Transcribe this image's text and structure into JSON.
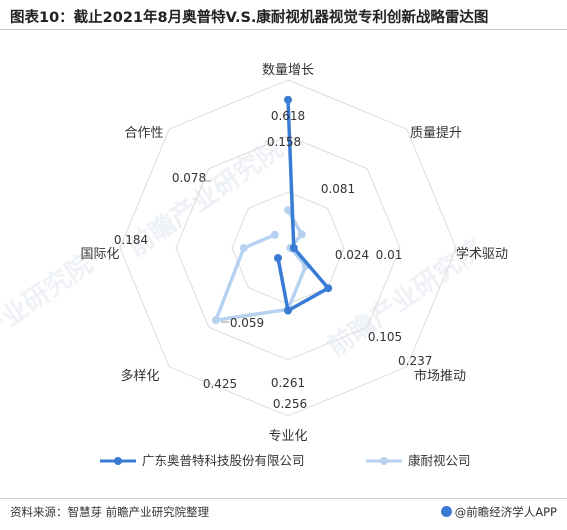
{
  "title": "图表10：截止2021年8月奥普特V.S.康耐视机器视觉专利创新战略雷达图",
  "footer": {
    "source": "资料来源：智慧芽 前瞻产业研究院整理",
    "brand": "@前瞻经济学人APP",
    "brand_icon": "brand-logo-icon"
  },
  "watermark": "前瞻产业研究院",
  "chart_data": {
    "type": "radar",
    "axes": [
      "数量增长",
      "质量提升",
      "学术驱动",
      "市场推动",
      "专业化",
      "多样化",
      "国际化",
      "合作性"
    ],
    "rlim": [
      0,
      0.7
    ],
    "grid": true,
    "legend_position": "bottom",
    "series": [
      {
        "name": "广东奥普特科技股份有限公司",
        "color": "#3a7bd5",
        "values": [
          0.618,
          null,
          0.024,
          0.237,
          0.261,
          0.059,
          null,
          null
        ],
        "labels": [
          "0.618",
          "",
          "0.024",
          "0.237",
          "0.261",
          "0.059",
          "",
          ""
        ]
      },
      {
        "name": "康耐视公司",
        "color": "#b7d1f0",
        "values": [
          0.158,
          0.081,
          0.01,
          0.105,
          0.256,
          0.425,
          0.184,
          0.078
        ],
        "labels": [
          "0.158",
          "0.081",
          "0.01",
          "0.105",
          "0.256",
          "0.425",
          "0.184",
          "0.078"
        ]
      }
    ]
  }
}
